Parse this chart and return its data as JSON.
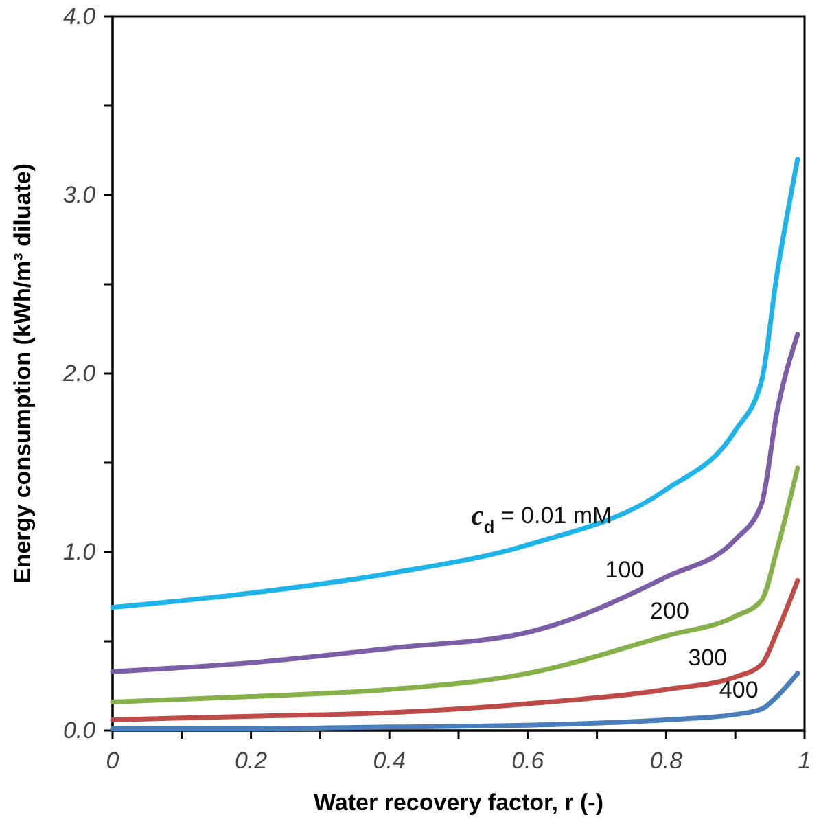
{
  "chart_data": {
    "type": "line",
    "xlabel": "Water recovery factor, r (-)",
    "ylabel": "Energy consumption (kWh/m³ diluate)",
    "x": [
      0,
      0.2,
      0.4,
      0.6,
      0.8,
      0.9,
      0.938,
      0.96,
      0.99
    ],
    "series": [
      {
        "name": "c$_{d}$ = 0.01 mM",
        "color": "#1eb4ea",
        "values": [
          0.69,
          0.77,
          0.88,
          1.04,
          1.35,
          1.68,
          1.96,
          2.55,
          3.2
        ]
      },
      {
        "name": "100",
        "color": "#7b5ea7",
        "values": [
          0.33,
          0.38,
          0.46,
          0.55,
          0.86,
          1.07,
          1.27,
          1.78,
          2.22
        ]
      },
      {
        "name": "200",
        "color": "#86b04a",
        "values": [
          0.16,
          0.19,
          0.23,
          0.32,
          0.53,
          0.64,
          0.73,
          1.01,
          1.47
        ]
      },
      {
        "name": "300",
        "color": "#be4b48",
        "values": [
          0.06,
          0.08,
          0.1,
          0.15,
          0.23,
          0.3,
          0.37,
          0.55,
          0.84
        ]
      },
      {
        "name": "400",
        "color": "#4a7ebb",
        "values": [
          0.01,
          0.01,
          0.02,
          0.03,
          0.06,
          0.09,
          0.12,
          0.19,
          0.32
        ]
      }
    ],
    "xlim": [
      0,
      1
    ],
    "ylim": [
      0,
      4
    ],
    "xticks": [
      0,
      {
        "value": 0.1,
        "label": null
      },
      0.2,
      {
        "value": 0.3,
        "label": null
      },
      0.4,
      {
        "value": 0.5,
        "label": null
      },
      0.6,
      {
        "value": 0.7,
        "label": null
      },
      0.8,
      {
        "value": 0.9,
        "label": null
      },
      1
    ],
    "yticks": [
      {
        "value": 0,
        "label": "0.0"
      },
      {
        "value": 0.5,
        "label": null
      },
      {
        "value": 1,
        "label": "1.0"
      },
      {
        "value": 1.5,
        "label": null
      },
      {
        "value": 2,
        "label": "2.0"
      },
      {
        "value": 2.5,
        "label": null
      },
      {
        "value": 3,
        "label": "3.0"
      },
      {
        "value": 3.5,
        "label": null
      },
      {
        "value": 4,
        "label": "4.0"
      }
    ],
    "grid": false,
    "marker": "none",
    "line_style": "solid"
  }
}
